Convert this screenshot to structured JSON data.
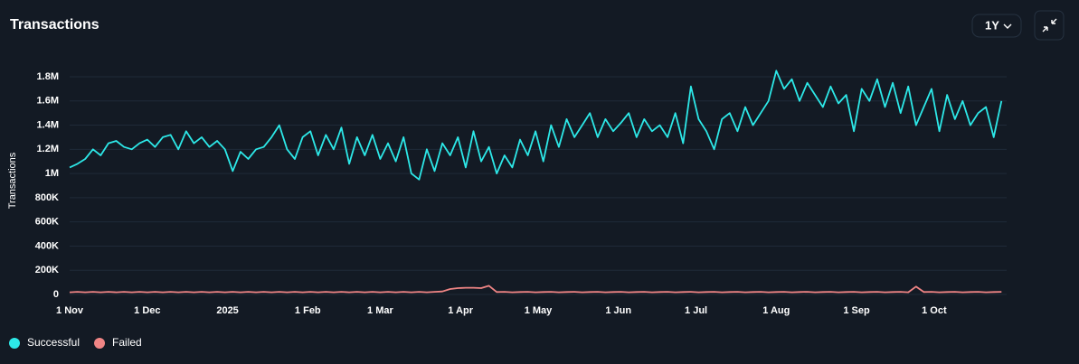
{
  "chart_data": {
    "type": "line",
    "title": "Transactions",
    "y_label": "Transactions",
    "controls": {
      "range": "1Y"
    },
    "x": [
      0,
      3,
      6,
      9,
      12,
      15,
      18,
      21,
      24,
      27,
      30,
      33,
      36,
      39,
      42,
      45,
      48,
      51,
      54,
      57,
      60,
      63,
      66,
      69,
      72,
      75,
      78,
      81,
      84,
      87,
      90,
      93,
      96,
      99,
      102,
      105,
      108,
      111,
      114,
      117,
      120,
      123,
      126,
      129,
      132,
      135,
      138,
      141,
      144,
      147,
      150,
      153,
      156,
      159,
      162,
      165,
      168,
      171,
      174,
      177,
      180,
      183,
      186,
      189,
      192,
      195,
      198,
      201,
      204,
      207,
      210,
      213,
      216,
      219,
      222,
      225,
      228,
      231,
      234,
      237,
      240,
      243,
      246,
      249,
      252,
      255,
      258,
      261,
      264,
      267,
      270,
      273,
      276,
      279,
      282,
      285,
      288,
      291,
      294,
      297,
      300,
      303,
      306,
      309,
      312,
      315,
      318,
      321,
      324,
      327,
      330,
      333,
      336,
      339,
      342,
      345,
      348,
      351,
      354,
      357,
      360
    ],
    "xlim": [
      0,
      362
    ],
    "xticks": [
      {
        "value": 0,
        "label": "1 Nov"
      },
      {
        "value": 30,
        "label": "1 Dec"
      },
      {
        "value": 61,
        "label": "2025"
      },
      {
        "value": 92,
        "label": "1 Feb"
      },
      {
        "value": 120,
        "label": "1 Mar"
      },
      {
        "value": 151,
        "label": "1 Apr"
      },
      {
        "value": 181,
        "label": "1 May"
      },
      {
        "value": 212,
        "label": "1 Jun"
      },
      {
        "value": 242,
        "label": "1 Jul"
      },
      {
        "value": 273,
        "label": "1 Aug"
      },
      {
        "value": 304,
        "label": "1 Sep"
      },
      {
        "value": 334,
        "label": "1 Oct"
      }
    ],
    "ylim": [
      0,
      1900000
    ],
    "yticks": [
      0,
      {
        "value": 200000,
        "label": "200K"
      },
      {
        "value": 400000,
        "label": "400K"
      },
      {
        "value": 600000,
        "label": "600K"
      },
      {
        "value": 800000,
        "label": "800K"
      },
      {
        "value": 1000000,
        "label": "1M"
      },
      {
        "value": 1200000,
        "label": "1.2M"
      },
      {
        "value": 1400000,
        "label": "1.4M"
      },
      {
        "value": 1600000,
        "label": "1.6M"
      },
      {
        "value": 1800000,
        "label": "1.8M"
      }
    ],
    "grid": true,
    "legend": "bottom-left",
    "series": [
      {
        "name": "Successful",
        "color": "#2de8e8",
        "values": [
          1050000,
          1080000,
          1120000,
          1200000,
          1150000,
          1250000,
          1270000,
          1220000,
          1200000,
          1250000,
          1280000,
          1220000,
          1300000,
          1320000,
          1200000,
          1350000,
          1250000,
          1300000,
          1220000,
          1270000,
          1200000,
          1020000,
          1180000,
          1120000,
          1200000,
          1220000,
          1300000,
          1400000,
          1200000,
          1120000,
          1300000,
          1350000,
          1150000,
          1320000,
          1200000,
          1380000,
          1080000,
          1300000,
          1150000,
          1320000,
          1120000,
          1250000,
          1100000,
          1300000,
          1000000,
          950000,
          1200000,
          1020000,
          1250000,
          1150000,
          1300000,
          1050000,
          1350000,
          1100000,
          1220000,
          1000000,
          1150000,
          1050000,
          1280000,
          1150000,
          1350000,
          1100000,
          1400000,
          1220000,
          1450000,
          1300000,
          1400000,
          1500000,
          1300000,
          1450000,
          1350000,
          1420000,
          1500000,
          1300000,
          1450000,
          1350000,
          1400000,
          1300000,
          1500000,
          1250000,
          1720000,
          1450000,
          1350000,
          1200000,
          1450000,
          1500000,
          1350000,
          1550000,
          1400000,
          1500000,
          1600000,
          1850000,
          1700000,
          1780000,
          1600000,
          1750000,
          1650000,
          1550000,
          1720000,
          1580000,
          1650000,
          1350000,
          1700000,
          1600000,
          1780000,
          1550000,
          1750000,
          1500000,
          1720000,
          1400000,
          1550000,
          1700000,
          1350000,
          1650000,
          1450000,
          1600000,
          1400000,
          1500000,
          1550000,
          1300000,
          1600000
        ]
      },
      {
        "name": "Failed",
        "color": "#f08585",
        "values": [
          18000,
          22000,
          18000,
          22000,
          18000,
          22000,
          18000,
          22000,
          18000,
          22000,
          18000,
          22000,
          18000,
          22000,
          18000,
          22000,
          18000,
          22000,
          18000,
          22000,
          18000,
          22000,
          18000,
          22000,
          18000,
          22000,
          18000,
          22000,
          18000,
          22000,
          18000,
          22000,
          18000,
          22000,
          18000,
          22000,
          18000,
          22000,
          18000,
          22000,
          18000,
          22000,
          18000,
          22000,
          18000,
          22000,
          18000,
          22000,
          25000,
          45000,
          52000,
          55000,
          55000,
          52000,
          72000,
          20000,
          22000,
          18000,
          20000,
          22000,
          18000,
          20000,
          22000,
          18000,
          20000,
          22000,
          18000,
          20000,
          22000,
          18000,
          20000,
          22000,
          18000,
          20000,
          22000,
          18000,
          20000,
          22000,
          18000,
          20000,
          22000,
          18000,
          20000,
          22000,
          18000,
          20000,
          22000,
          18000,
          20000,
          22000,
          18000,
          20000,
          22000,
          18000,
          20000,
          22000,
          18000,
          20000,
          22000,
          18000,
          20000,
          22000,
          18000,
          20000,
          22000,
          18000,
          20000,
          22000,
          18000,
          65000,
          20000,
          22000,
          18000,
          20000,
          22000,
          18000,
          20000,
          22000,
          18000,
          20000,
          22000
        ]
      }
    ]
  }
}
